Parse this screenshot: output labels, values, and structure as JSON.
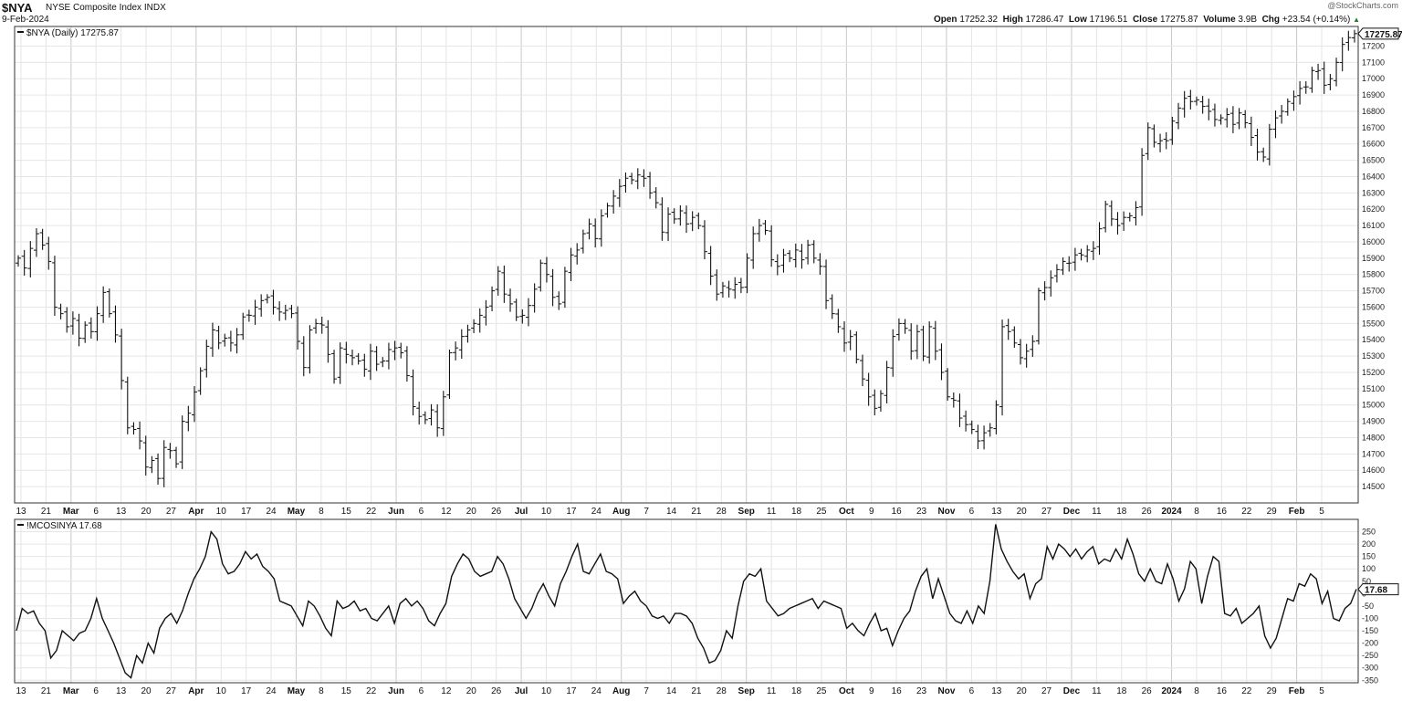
{
  "header": {
    "symbol": "$NYA",
    "name": "NYSE Composite Index",
    "exchange": "INDX",
    "date": "9-Feb-2024",
    "watermark": "@StockCharts.com",
    "open_label": "Open",
    "open": "17252.32",
    "high_label": "High",
    "high": "17286.47",
    "low_label": "Low",
    "low": "17196.51",
    "close_label": "Close",
    "close": "17275.87",
    "volume_label": "Volume",
    "volume": "3.9B",
    "chg_label": "Chg",
    "chg": "+23.54 (+0.14%)",
    "chg_arrow": "▲"
  },
  "chart_data": [
    {
      "type": "ohlc-bar",
      "legend": "$NYA (Daily) 17275.87",
      "last_value": "17275.87",
      "ylim": [
        14400,
        17320
      ],
      "yticks": [
        14500,
        14600,
        14700,
        14800,
        14900,
        15000,
        15100,
        15200,
        15300,
        15400,
        15500,
        15600,
        15700,
        15800,
        15900,
        16000,
        16100,
        16200,
        16300,
        16400,
        16500,
        16600,
        16700,
        16800,
        16900,
        17000,
        17100,
        17200
      ],
      "grid": true,
      "closes": [
        15900,
        15840,
        15960,
        16050,
        15980,
        15880,
        15600,
        15560,
        15480,
        15530,
        15410,
        15490,
        15450,
        15560,
        15690,
        15560,
        15430,
        15150,
        14860,
        14850,
        14780,
        14620,
        14660,
        14550,
        14740,
        14720,
        14640,
        14900,
        14950,
        15080,
        15210,
        15360,
        15460,
        15380,
        15410,
        15380,
        15430,
        15540,
        15550,
        15600,
        15640,
        15660,
        15600,
        15570,
        15580,
        15560,
        15390,
        15230,
        15460,
        15500,
        15490,
        15310,
        15160,
        15350,
        15310,
        15290,
        15270,
        15220,
        15330,
        15250,
        15270,
        15340,
        15350,
        15320,
        15180,
        14990,
        14930,
        14910,
        14970,
        14860,
        15050,
        15320,
        15350,
        15420,
        15460,
        15500,
        15550,
        15600,
        15700,
        15820,
        15680,
        15620,
        15540,
        15550,
        15610,
        15710,
        15870,
        15800,
        15660,
        15620,
        15820,
        15920,
        15950,
        16050,
        16110,
        16020,
        16160,
        16220,
        16280,
        16340,
        16390,
        16380,
        16410,
        16390,
        16300,
        16240,
        16060,
        16170,
        16140,
        16190,
        16110,
        16150,
        16100,
        15940,
        15790,
        15680,
        15730,
        15710,
        15740,
        15720,
        15900,
        16050,
        16100,
        16070,
        15890,
        15850,
        15920,
        15900,
        15950,
        15890,
        15980,
        15900,
        15850,
        15640,
        15560,
        15480,
        15380,
        15420,
        15280,
        15160,
        15050,
        14980,
        15070,
        15230,
        15420,
        15500,
        15470,
        15330,
        15450,
        15300,
        15480,
        15330,
        15200,
        15050,
        15030,
        14920,
        14880,
        14850,
        14780,
        14830,
        14860,
        15000,
        15480,
        15450,
        15380,
        15290,
        15330,
        15390,
        15700,
        15720,
        15780,
        15830,
        15880,
        15870,
        15920,
        15920,
        15950,
        15960,
        16080,
        16230,
        16140,
        16100,
        16150,
        16160,
        16210,
        16530,
        16700,
        16610,
        16620,
        16620,
        16740,
        16820,
        16880,
        16860,
        16870,
        16830,
        16800,
        16750,
        16760,
        16780,
        16720,
        16790,
        16730,
        16640,
        16550,
        16520,
        16690,
        16760,
        16800,
        16860,
        16890,
        16940,
        16950,
        17050,
        17050,
        16960,
        17000,
        17100,
        17210,
        17252,
        17276
      ]
    },
    {
      "type": "line",
      "legend": "!MCOSINYA 17.68",
      "last_value": "17.68",
      "ylim": [
        -360,
        300
      ],
      "yticks": [
        -350,
        -300,
        -250,
        -200,
        -150,
        -100,
        -50,
        0,
        50,
        100,
        150,
        200,
        250
      ],
      "grid": true,
      "values": [
        -150,
        -60,
        -80,
        -70,
        -120,
        -150,
        -260,
        -230,
        -150,
        -170,
        -190,
        -160,
        -150,
        -100,
        -20,
        -100,
        -150,
        -200,
        -260,
        -320,
        -340,
        -250,
        -280,
        -200,
        -240,
        -140,
        -100,
        -80,
        -120,
        -70,
        0,
        60,
        100,
        150,
        250,
        220,
        120,
        80,
        90,
        120,
        170,
        140,
        160,
        110,
        90,
        60,
        -30,
        -40,
        -50,
        -90,
        -130,
        -30,
        -50,
        -90,
        -140,
        -170,
        -30,
        -60,
        -50,
        -30,
        -70,
        -60,
        -100,
        -110,
        -80,
        -50,
        -120,
        -40,
        -20,
        -50,
        -30,
        -60,
        -110,
        -130,
        -80,
        -40,
        70,
        120,
        160,
        140,
        90,
        70,
        80,
        90,
        150,
        120,
        60,
        -20,
        -60,
        -100,
        -60,
        0,
        40,
        -10,
        -50,
        40,
        90,
        150,
        200,
        90,
        80,
        120,
        160,
        90,
        80,
        60,
        -40,
        -10,
        10,
        -30,
        -50,
        -90,
        -100,
        -90,
        -120,
        -80,
        -80,
        -90,
        -120,
        -180,
        -220,
        -280,
        -270,
        -230,
        -150,
        -180,
        -50,
        50,
        80,
        70,
        100,
        -30,
        -60,
        -90,
        -80,
        -60,
        -50,
        -40,
        -30,
        -20,
        -60,
        -30,
        -40,
        -50,
        -60,
        -140,
        -120,
        -150,
        -170,
        -120,
        -80,
        -150,
        -140,
        -210,
        -150,
        -100,
        -70,
        10,
        70,
        100,
        -20,
        60,
        -10,
        -80,
        -110,
        -120,
        -70,
        -120,
        -50,
        -80,
        50,
        280,
        180,
        130,
        90,
        60,
        80,
        -20,
        40,
        60,
        190,
        140,
        200,
        180,
        150,
        180,
        140,
        170,
        190,
        120,
        140,
        130,
        180,
        140,
        220,
        160,
        80,
        50,
        100,
        50,
        40,
        120,
        60,
        -30,
        20,
        130,
        100,
        -40,
        70,
        150,
        130,
        -80,
        -90,
        -60,
        -120,
        -100,
        -80,
        -50,
        -170,
        -220,
        -180,
        -100,
        -20,
        -30,
        40,
        30,
        80,
        60,
        -40,
        10,
        -100,
        -110,
        -60,
        -40,
        18
      ]
    }
  ],
  "x_axis_labels": [
    {
      "label": "13",
      "bold": false
    },
    {
      "label": "21",
      "bold": false
    },
    {
      "label": "Mar",
      "bold": true
    },
    {
      "label": "6",
      "bold": false
    },
    {
      "label": "13",
      "bold": false
    },
    {
      "label": "20",
      "bold": false
    },
    {
      "label": "27",
      "bold": false
    },
    {
      "label": "Apr",
      "bold": true
    },
    {
      "label": "10",
      "bold": false
    },
    {
      "label": "17",
      "bold": false
    },
    {
      "label": "24",
      "bold": false
    },
    {
      "label": "May",
      "bold": true
    },
    {
      "label": "8",
      "bold": false
    },
    {
      "label": "15",
      "bold": false
    },
    {
      "label": "22",
      "bold": false
    },
    {
      "label": "Jun",
      "bold": true
    },
    {
      "label": "6",
      "bold": false
    },
    {
      "label": "12",
      "bold": false
    },
    {
      "label": "20",
      "bold": false
    },
    {
      "label": "26",
      "bold": false
    },
    {
      "label": "Jul",
      "bold": true
    },
    {
      "label": "10",
      "bold": false
    },
    {
      "label": "17",
      "bold": false
    },
    {
      "label": "24",
      "bold": false
    },
    {
      "label": "Aug",
      "bold": true
    },
    {
      "label": "7",
      "bold": false
    },
    {
      "label": "14",
      "bold": false
    },
    {
      "label": "21",
      "bold": false
    },
    {
      "label": "28",
      "bold": false
    },
    {
      "label": "Sep",
      "bold": true
    },
    {
      "label": "11",
      "bold": false
    },
    {
      "label": "18",
      "bold": false
    },
    {
      "label": "25",
      "bold": false
    },
    {
      "label": "Oct",
      "bold": true
    },
    {
      "label": "9",
      "bold": false
    },
    {
      "label": "16",
      "bold": false
    },
    {
      "label": "23",
      "bold": false
    },
    {
      "label": "Nov",
      "bold": true
    },
    {
      "label": "6",
      "bold": false
    },
    {
      "label": "13",
      "bold": false
    },
    {
      "label": "20",
      "bold": false
    },
    {
      "label": "27",
      "bold": false
    },
    {
      "label": "Dec",
      "bold": true
    },
    {
      "label": "11",
      "bold": false
    },
    {
      "label": "18",
      "bold": false
    },
    {
      "label": "26",
      "bold": false
    },
    {
      "label": "2024",
      "bold": true
    },
    {
      "label": "8",
      "bold": false
    },
    {
      "label": "16",
      "bold": false
    },
    {
      "label": "22",
      "bold": false
    },
    {
      "label": "29",
      "bold": false
    },
    {
      "label": "Feb",
      "bold": true
    },
    {
      "label": "5",
      "bold": false
    }
  ]
}
